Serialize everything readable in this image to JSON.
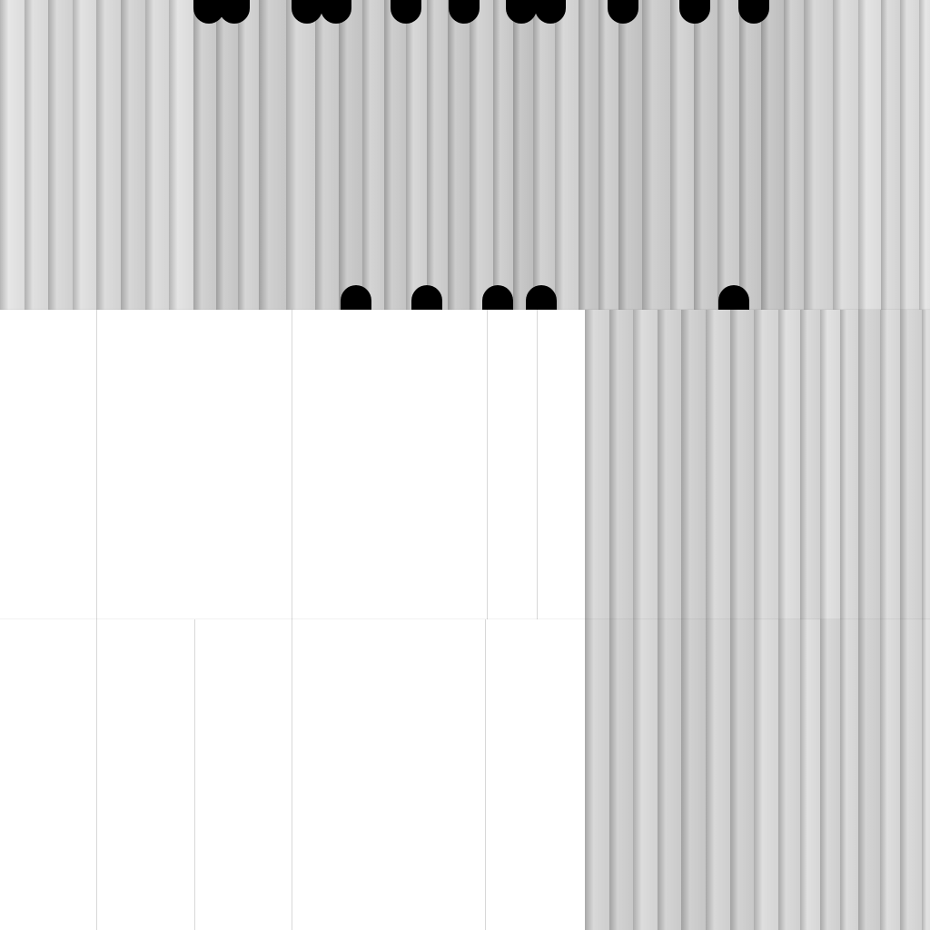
{
  "image": {
    "description_tone": "grayscale",
    "colors": {
      "background": "#ffffff",
      "light_gray": "#dcdcdc",
      "mid_gray": "#b8b8b8",
      "dark_shadow": "#8a8a8a",
      "black": "#000000",
      "divider": "#d8d8d8"
    }
  }
}
